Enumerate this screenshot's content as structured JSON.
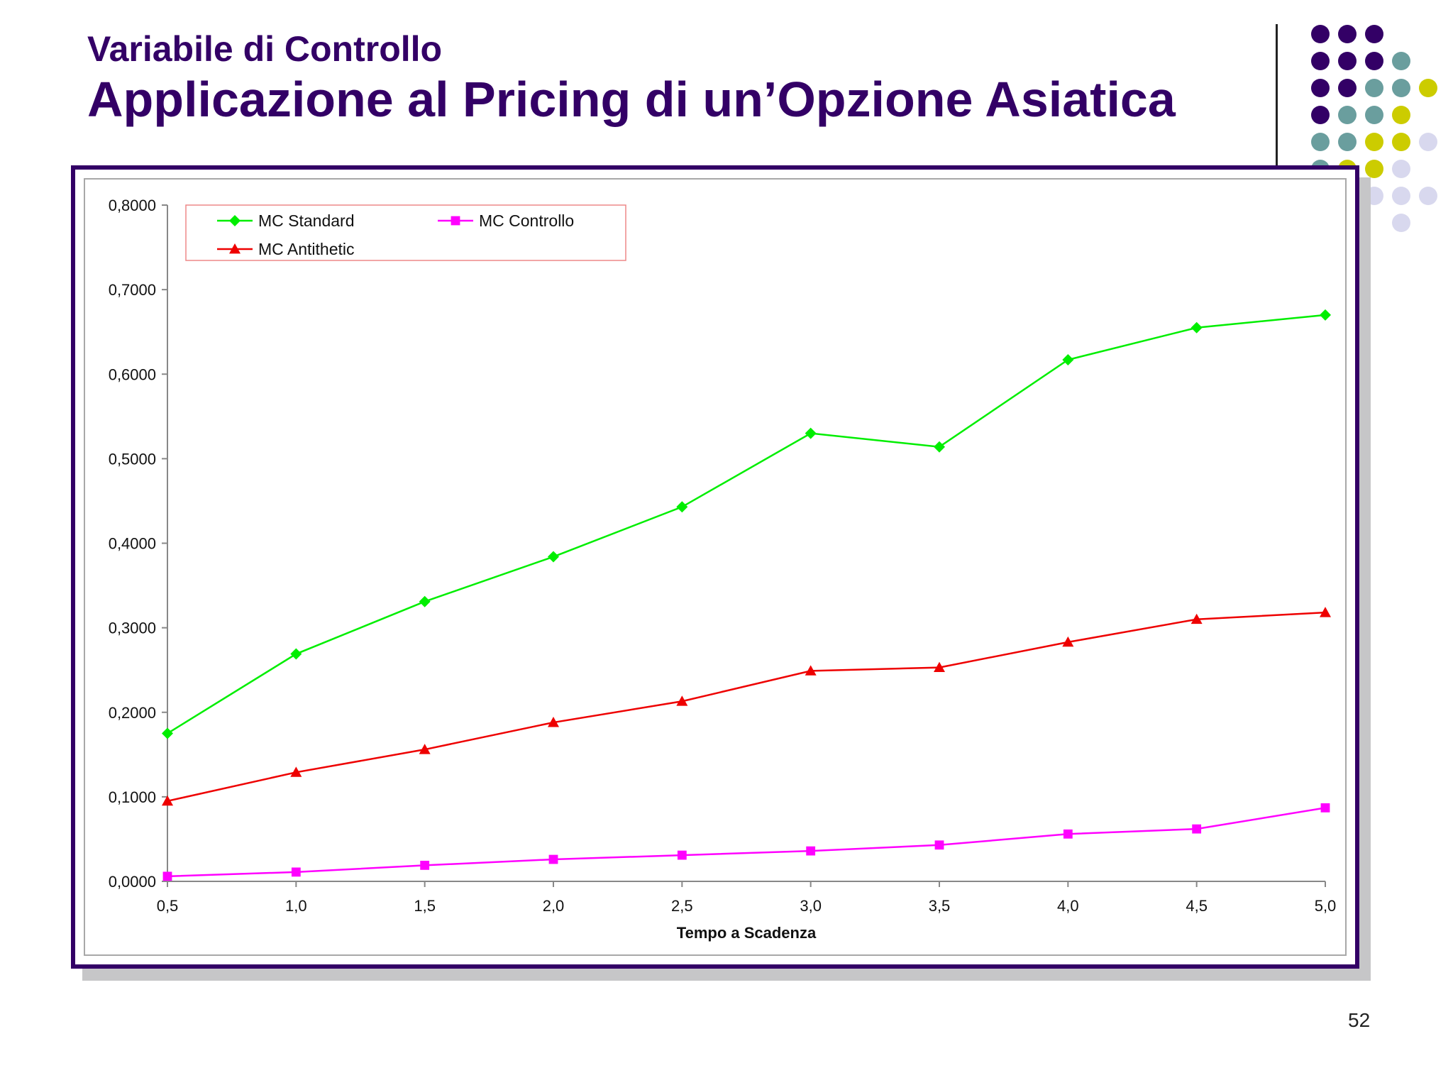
{
  "slide": {
    "subtitle": "Variabile di Controllo",
    "title": "Applicazione al Pricing di un’Opzione Asiatica",
    "page_number": "52"
  },
  "colors": {
    "title": "#330066",
    "frame": "#330066",
    "dot_purple": "#330066",
    "dot_teal": "#6A9E9E",
    "dot_olive": "#CCCC00",
    "dot_lavender": "#D8D8EE"
  },
  "chart_data": {
    "type": "line",
    "xlabel": "Tempo a Scadenza",
    "ylabel": "",
    "x": [
      0.5,
      1.0,
      1.5,
      2.0,
      2.5,
      3.0,
      3.5,
      4.0,
      4.5,
      5.0
    ],
    "x_tick_labels": [
      "0,5",
      "1,0",
      "1,5",
      "2,0",
      "2,5",
      "3,0",
      "3,5",
      "4,0",
      "4,5",
      "5,0"
    ],
    "ylim": [
      0,
      0.8
    ],
    "y_ticks": [
      0,
      0.1,
      0.2,
      0.3,
      0.4,
      0.5,
      0.6,
      0.7,
      0.8
    ],
    "y_tick_labels": [
      "0,0000",
      "0,1000",
      "0,2000",
      "0,3000",
      "0,4000",
      "0,5000",
      "0,6000",
      "0,7000",
      "0,8000"
    ],
    "grid": false,
    "legend_position": "top-left",
    "series": [
      {
        "name": "MC Standard",
        "color": "#00EE00",
        "marker": "diamond",
        "values": [
          0.175,
          0.269,
          0.331,
          0.384,
          0.443,
          0.53,
          0.514,
          0.617,
          0.655,
          0.67
        ]
      },
      {
        "name": "MC Controllo",
        "color": "#FF00FF",
        "marker": "square",
        "values": [
          0.006,
          0.011,
          0.019,
          0.026,
          0.031,
          0.036,
          0.043,
          0.056,
          0.062,
          0.087
        ]
      },
      {
        "name": "MC Antithetic",
        "color": "#EE0000",
        "marker": "triangle",
        "values": [
          0.095,
          0.129,
          0.156,
          0.188,
          0.213,
          0.249,
          0.253,
          0.283,
          0.31,
          0.318
        ]
      }
    ]
  }
}
